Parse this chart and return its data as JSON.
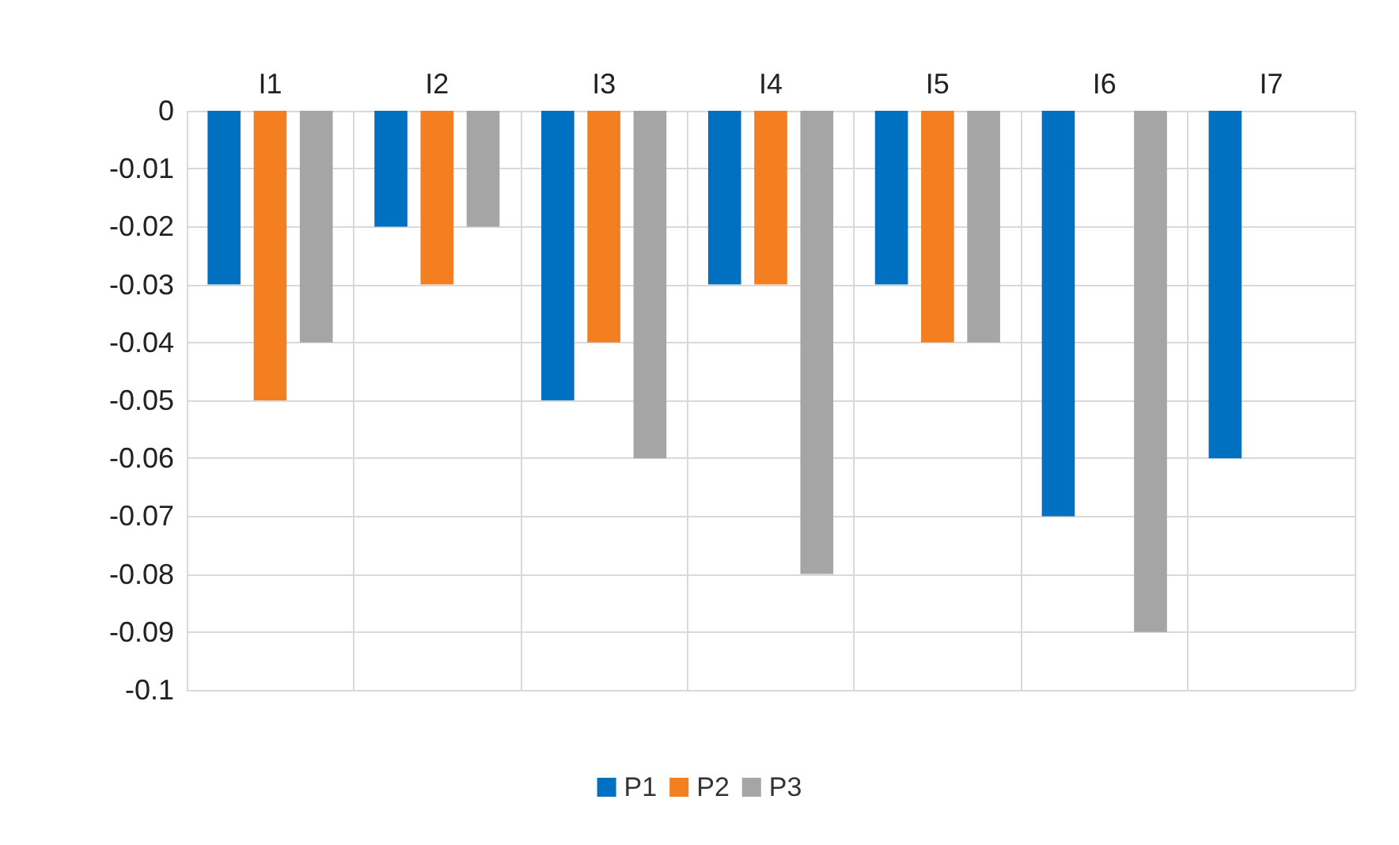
{
  "chart_data": {
    "type": "bar",
    "categories": [
      "I1",
      "I2",
      "I3",
      "I4",
      "I5",
      "I6",
      "I7"
    ],
    "series": [
      {
        "name": "P1",
        "color": "#0070c0",
        "values": [
          -0.03,
          -0.02,
          -0.05,
          -0.03,
          -0.03,
          -0.07,
          -0.06
        ]
      },
      {
        "name": "P2",
        "color": "#f47f20",
        "values": [
          -0.05,
          -0.03,
          -0.04,
          -0.03,
          -0.04,
          null,
          null
        ]
      },
      {
        "name": "P3",
        "color": "#a5a5a5",
        "values": [
          -0.04,
          -0.02,
          -0.06,
          -0.08,
          -0.04,
          -0.09,
          null
        ]
      }
    ],
    "ylim": [
      -0.1,
      0
    ],
    "yticks": [
      0,
      -0.01,
      -0.02,
      -0.03,
      -0.04,
      -0.05,
      -0.06,
      -0.07,
      -0.08,
      -0.09,
      -0.1
    ],
    "grid": true,
    "legend": "bottom"
  }
}
